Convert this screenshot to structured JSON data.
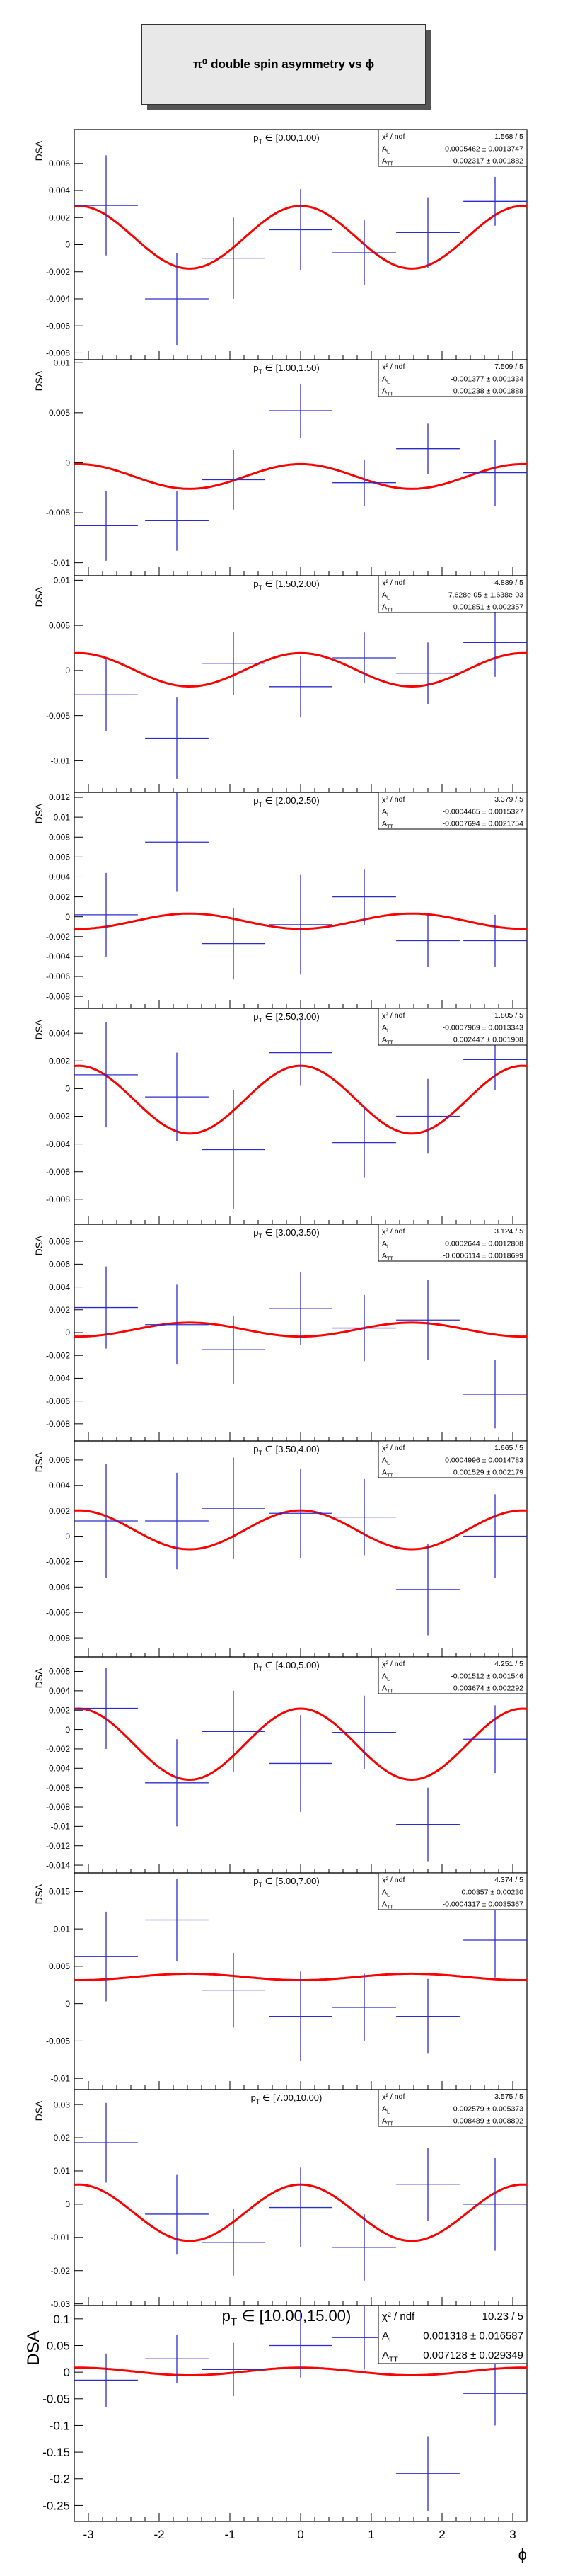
{
  "figure_title": "π⁰ double spin asymmetry vs ϕ",
  "x_axis_title": "ϕ",
  "stat_labels": {
    "chi2": "χ² / ndf",
    "al": "A_L",
    "att": "A_TT"
  },
  "colors": {
    "fit": "#ff0000",
    "data": "#2d2dcc",
    "axes": "#000000",
    "box": "#e8e8e8"
  },
  "chart_data": [
    {
      "type": "scatter",
      "title": "p_T ∈ [0.00,1.00)",
      "ylabel": "DSA",
      "xlim": [
        -3.2,
        3.2
      ],
      "ylim": [
        -0.0085,
        0.0085
      ],
      "yticks": [
        0.006,
        0.004,
        0.002,
        0,
        -0.002,
        -0.004,
        -0.006,
        -0.008
      ],
      "ytick_labels": [
        "0.006",
        "0.004",
        "0.002",
        "0",
        "-0.002",
        "-0.004",
        "-0.006",
        "-0.008"
      ],
      "points": [
        {
          "x": -2.75,
          "y": 0.0029,
          "ey": 0.0037
        },
        {
          "x": -1.75,
          "y": -0.004,
          "ey": 0.0034
        },
        {
          "x": -0.95,
          "y": -0.001,
          "ey": 0.003
        },
        {
          "x": 0.0,
          "y": 0.0011,
          "ey": 0.003
        },
        {
          "x": 0.9,
          "y": -0.0006,
          "ey": 0.0024
        },
        {
          "x": 1.8,
          "y": 0.0009,
          "ey": 0.0026
        },
        {
          "x": 2.75,
          "y": 0.0032,
          "ey": 0.0018
        }
      ],
      "stats": {
        "chi2": "1.568 / 5",
        "al": "0.0005462 ± 0.0013747",
        "att": "0.002317 ± 0.001882"
      }
    },
    {
      "type": "scatter",
      "title": "p_T ∈ [1.00,1.50)",
      "ylabel": "DSA",
      "xlim": [
        -3.2,
        3.2
      ],
      "ylim": [
        -0.0113,
        0.0103
      ],
      "yticks": [
        0.01,
        0.005,
        0,
        -0.005,
        -0.01
      ],
      "ytick_labels": [
        "0.01",
        "0.005",
        "0",
        "-0.005",
        "-0.01"
      ],
      "points": [
        {
          "x": -2.75,
          "y": -0.0063,
          "ey": 0.0035
        },
        {
          "x": -1.75,
          "y": -0.0058,
          "ey": 0.003
        },
        {
          "x": -0.95,
          "y": -0.0017,
          "ey": 0.003
        },
        {
          "x": 0.0,
          "y": 0.0052,
          "ey": 0.0027
        },
        {
          "x": 0.9,
          "y": -0.002,
          "ey": 0.0023
        },
        {
          "x": 1.8,
          "y": 0.0014,
          "ey": 0.0025
        },
        {
          "x": 2.75,
          "y": -0.001,
          "ey": 0.0033
        }
      ],
      "stats": {
        "chi2": "7.509 / 5",
        "al": "-0.001377 ± 0.001334",
        "att": "0.001238 ± 0.001888"
      }
    },
    {
      "type": "scatter",
      "title": "p_T ∈ [1.50,2.00)",
      "ylabel": "DSA",
      "xlim": [
        -3.2,
        3.2
      ],
      "ylim": [
        -0.0135,
        0.0105
      ],
      "yticks": [
        0.01,
        0.005,
        0,
        -0.005,
        -0.01
      ],
      "ytick_labels": [
        "0.01",
        "0.005",
        "0",
        "-0.005",
        "-0.01"
      ],
      "points": [
        {
          "x": -2.75,
          "y": -0.0027,
          "ey": 0.004
        },
        {
          "x": -1.75,
          "y": -0.0075,
          "ey": 0.0045
        },
        {
          "x": -0.95,
          "y": 0.0008,
          "ey": 0.0035
        },
        {
          "x": 0.0,
          "y": -0.0018,
          "ey": 0.0034
        },
        {
          "x": 0.9,
          "y": 0.0014,
          "ey": 0.0028
        },
        {
          "x": 1.8,
          "y": -0.0003,
          "ey": 0.0034
        },
        {
          "x": 2.75,
          "y": 0.0031,
          "ey": 0.0038
        }
      ],
      "stats": {
        "chi2": "4.889 / 5",
        "al": "7.628e-05 ± 1.638e-03",
        "att": "0.001851 ± 0.002357"
      }
    },
    {
      "type": "scatter",
      "title": "p_T ∈ [2.00,2.50)",
      "ylabel": "DSA",
      "xlim": [
        -3.2,
        3.2
      ],
      "ylim": [
        -0.0092,
        0.0125
      ],
      "yticks": [
        0.012,
        0.01,
        0.008,
        0.006,
        0.004,
        0.002,
        0,
        -0.002,
        -0.004,
        -0.006,
        -0.008
      ],
      "ytick_labels": [
        "0.012",
        "0.01",
        "0.008",
        "0.006",
        "0.004",
        "0.002",
        "0",
        "-0.002",
        "-0.004",
        "-0.006",
        "-0.008"
      ],
      "points": [
        {
          "x": -2.75,
          "y": 0.0002,
          "ey": 0.0042
        },
        {
          "x": -1.75,
          "y": 0.0075,
          "ey": 0.005
        },
        {
          "x": -0.95,
          "y": -0.0027,
          "ey": 0.0036
        },
        {
          "x": 0.0,
          "y": -0.0008,
          "ey": 0.005
        },
        {
          "x": 0.9,
          "y": 0.002,
          "ey": 0.0028
        },
        {
          "x": 1.8,
          "y": -0.0024,
          "ey": 0.0026
        },
        {
          "x": 2.75,
          "y": -0.0024,
          "ey": 0.0026
        }
      ],
      "stats": {
        "chi2": "3.379 / 5",
        "al": "-0.0004465 ± 0.0015327",
        "att": "-0.0007694 ± 0.0021754"
      }
    },
    {
      "type": "scatter",
      "title": "p_T ∈ [2.50,3.00)",
      "ylabel": "DSA",
      "xlim": [
        -3.2,
        3.2
      ],
      "ylim": [
        -0.0098,
        0.0058
      ],
      "yticks": [
        0.004,
        0.002,
        0,
        -0.002,
        -0.004,
        -0.006,
        -0.008
      ],
      "ytick_labels": [
        "0.004",
        "0.002",
        "0",
        "-0.002",
        "-0.004",
        "-0.006",
        "-0.008"
      ],
      "points": [
        {
          "x": -2.75,
          "y": 0.001,
          "ey": 0.0038
        },
        {
          "x": -1.75,
          "y": -0.0006,
          "ey": 0.0032
        },
        {
          "x": -0.95,
          "y": -0.0044,
          "ey": 0.0043
        },
        {
          "x": 0.0,
          "y": 0.0026,
          "ey": 0.0024
        },
        {
          "x": 0.9,
          "y": -0.0039,
          "ey": 0.0025
        },
        {
          "x": 1.8,
          "y": -0.002,
          "ey": 0.0027
        },
        {
          "x": 2.75,
          "y": 0.0021,
          "ey": 0.0022
        }
      ],
      "stats": {
        "chi2": "1.805 / 5",
        "al": "-0.0007969 ± 0.0013343",
        "att": "0.002447 ± 0.001908"
      }
    },
    {
      "type": "scatter",
      "title": "p_T ∈ [3.00,3.50)",
      "ylabel": "DSA",
      "xlim": [
        -3.2,
        3.2
      ],
      "ylim": [
        -0.0095,
        0.0095
      ],
      "yticks": [
        0.008,
        0.006,
        0.004,
        0.002,
        0,
        -0.002,
        -0.004,
        -0.006,
        -0.008
      ],
      "ytick_labels": [
        "0.008",
        "0.006",
        "0.004",
        "0.002",
        "0",
        "-0.002",
        "-0.004",
        "-0.006",
        "-0.008"
      ],
      "points": [
        {
          "x": -2.75,
          "y": 0.0022,
          "ey": 0.0036
        },
        {
          "x": -1.75,
          "y": 0.0007,
          "ey": 0.0035
        },
        {
          "x": -0.95,
          "y": -0.0015,
          "ey": 0.003
        },
        {
          "x": 0.0,
          "y": 0.0021,
          "ey": 0.0032
        },
        {
          "x": 0.9,
          "y": 0.0004,
          "ey": 0.0029
        },
        {
          "x": 1.8,
          "y": 0.0011,
          "ey": 0.0035
        },
        {
          "x": 2.75,
          "y": -0.0054,
          "ey": 0.003
        }
      ],
      "stats": {
        "chi2": "3.124 / 5",
        "al": "0.0002644 ± 0.0012808",
        "att": "-0.0006114 ± 0.0018699"
      }
    },
    {
      "type": "scatter",
      "title": "p_T ∈ [3.50,4.00)",
      "ylabel": "DSA",
      "xlim": [
        -3.2,
        3.2
      ],
      "ylim": [
        -0.0095,
        0.0075
      ],
      "yticks": [
        0.006,
        0.004,
        0.002,
        0,
        -0.002,
        -0.004,
        -0.006,
        -0.008
      ],
      "ytick_labels": [
        "0.006",
        "0.004",
        "0.002",
        "0",
        "-0.002",
        "-0.004",
        "-0.006",
        "-0.008"
      ],
      "points": [
        {
          "x": -2.75,
          "y": 0.0012,
          "ey": 0.0045
        },
        {
          "x": -1.75,
          "y": 0.0012,
          "ey": 0.0038
        },
        {
          "x": -0.95,
          "y": 0.0022,
          "ey": 0.004
        },
        {
          "x": 0.0,
          "y": 0.0018,
          "ey": 0.0035
        },
        {
          "x": 0.9,
          "y": 0.0015,
          "ey": 0.003
        },
        {
          "x": 1.8,
          "y": -0.0042,
          "ey": 0.0036
        },
        {
          "x": 2.75,
          "y": 0.0,
          "ey": 0.0033
        }
      ],
      "stats": {
        "chi2": "1.665 / 5",
        "al": "0.0004996 ± 0.0014783",
        "att": "0.001529 ± 0.002179"
      }
    },
    {
      "type": "scatter",
      "title": "p_T ∈ [4.00,5.00)",
      "ylabel": "DSA",
      "xlim": [
        -3.2,
        3.2
      ],
      "ylim": [
        -0.0148,
        0.0075
      ],
      "yticks": [
        0.006,
        0.004,
        0.002,
        0,
        -0.002,
        -0.004,
        -0.006,
        -0.008,
        -0.01,
        -0.012,
        -0.014
      ],
      "ytick_labels": [
        "0.006",
        "0.004",
        "0.002",
        "0",
        "-0.002",
        "-0.004",
        "-0.006",
        "-0.008",
        "-0.01",
        "-0.012",
        "-0.014"
      ],
      "points": [
        {
          "x": -2.75,
          "y": 0.0022,
          "ey": 0.0042
        },
        {
          "x": -1.75,
          "y": -0.0055,
          "ey": 0.0045
        },
        {
          "x": -0.95,
          "y": -0.0002,
          "ey": 0.0042
        },
        {
          "x": 0.0,
          "y": -0.0035,
          "ey": 0.005
        },
        {
          "x": 0.9,
          "y": -0.0003,
          "ey": 0.0038
        },
        {
          "x": 1.8,
          "y": -0.0098,
          "ey": 0.0038
        },
        {
          "x": 2.75,
          "y": -0.001,
          "ey": 0.0035
        }
      ],
      "stats": {
        "chi2": "4.251 / 5",
        "al": "-0.001512 ± 0.001546",
        "att": "0.003674 ± 0.002292"
      }
    },
    {
      "type": "scatter",
      "title": "p_T ∈ [5.00,7.00)",
      "ylabel": "DSA",
      "xlim": [
        -3.2,
        3.2
      ],
      "ylim": [
        -0.0115,
        0.0175
      ],
      "yticks": [
        0.015,
        0.01,
        0.005,
        0,
        -0.005,
        -0.01
      ],
      "ytick_labels": [
        "0.015",
        "0.01",
        "0.005",
        "0",
        "-0.005",
        "-0.01"
      ],
      "points": [
        {
          "x": -2.75,
          "y": 0.0063,
          "ey": 0.006
        },
        {
          "x": -1.75,
          "y": 0.0112,
          "ey": 0.0055
        },
        {
          "x": -0.95,
          "y": 0.0018,
          "ey": 0.005
        },
        {
          "x": 0.0,
          "y": -0.0017,
          "ey": 0.006
        },
        {
          "x": 0.9,
          "y": -0.0005,
          "ey": 0.0045
        },
        {
          "x": 1.8,
          "y": -0.0017,
          "ey": 0.005
        },
        {
          "x": 2.75,
          "y": 0.0085,
          "ey": 0.005
        }
      ],
      "stats": {
        "chi2": "4.374 / 5",
        "al": "0.00357 ± 0.00230",
        "att": "-0.0004317 ± 0.0035367"
      }
    },
    {
      "type": "scatter",
      "title": "p_T ∈ [7.00,10.00)",
      "ylabel": "DSA",
      "xlim": [
        -3.2,
        3.2
      ],
      "ylim": [
        -0.0305,
        0.0345
      ],
      "yticks": [
        0.03,
        0.02,
        0.01,
        0,
        -0.01,
        -0.02,
        -0.03
      ],
      "ytick_labels": [
        "0.03",
        "0.02",
        "0.01",
        "0",
        "-0.01",
        "-0.02",
        "-0.03"
      ],
      "points": [
        {
          "x": -2.75,
          "y": 0.0185,
          "ey": 0.012
        },
        {
          "x": -1.75,
          "y": -0.003,
          "ey": 0.012
        },
        {
          "x": -0.95,
          "y": -0.0115,
          "ey": 0.01
        },
        {
          "x": 0.0,
          "y": -0.001,
          "ey": 0.012
        },
        {
          "x": 0.9,
          "y": -0.013,
          "ey": 0.01
        },
        {
          "x": 1.8,
          "y": 0.006,
          "ey": 0.011
        },
        {
          "x": 2.75,
          "y": 0.0,
          "ey": 0.014
        }
      ],
      "stats": {
        "chi2": "3.575 / 5",
        "al": "-0.002579 ± 0.005373",
        "att": "0.008489 ± 0.008892"
      }
    },
    {
      "type": "scatter",
      "title": "p_T ∈ [10.00,15.00)",
      "ylabel": "DSA",
      "xlabel": "ϕ",
      "xlim": [
        -3.2,
        3.2
      ],
      "ylim": [
        -0.28,
        0.125
      ],
      "yticks": [
        0.1,
        0.05,
        0,
        -0.05,
        -0.1,
        -0.15,
        -0.2,
        -0.25
      ],
      "ytick_labels": [
        "0.1",
        "0.05",
        "0",
        "-0.05",
        "-0.1",
        "-0.15",
        "-0.2",
        "-0.25"
      ],
      "xticks": [
        -3,
        -2,
        -1,
        0,
        1,
        2,
        3
      ],
      "xtick_labels": [
        "-3",
        "-2",
        "-1",
        "0",
        "1",
        "2",
        "3"
      ],
      "points": [
        {
          "x": -2.75,
          "y": -0.015,
          "ey": 0.05
        },
        {
          "x": -1.75,
          "y": 0.025,
          "ey": 0.045
        },
        {
          "x": -0.95,
          "y": 0.005,
          "ey": 0.05
        },
        {
          "x": 0.0,
          "y": 0.05,
          "ey": 0.06
        },
        {
          "x": 0.9,
          "y": 0.065,
          "ey": 0.06
        },
        {
          "x": 1.8,
          "y": -0.19,
          "ey": 0.07
        },
        {
          "x": 2.75,
          "y": -0.04,
          "ey": 0.06
        }
      ],
      "stats": {
        "chi2": "10.23 / 5",
        "al": "0.001318 ± 0.016587",
        "att": "0.007128 ± 0.029349"
      }
    }
  ]
}
